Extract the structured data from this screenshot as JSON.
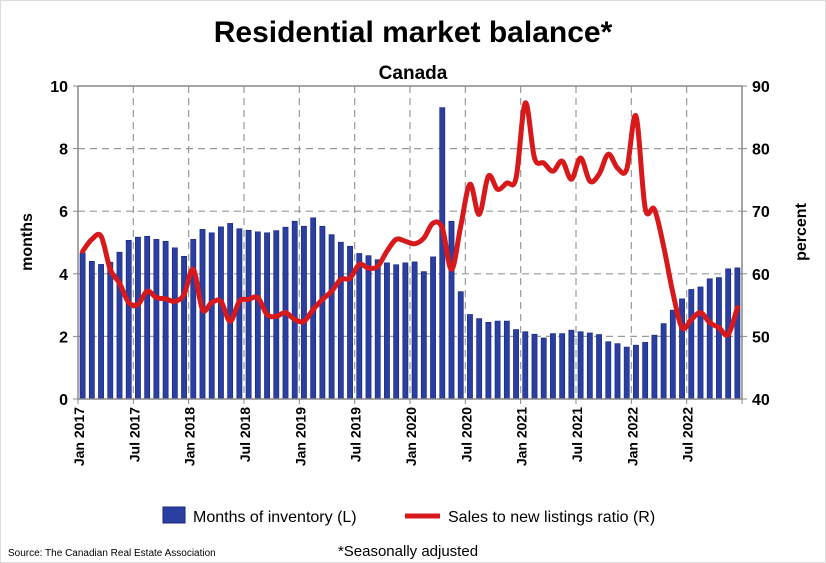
{
  "chart_data": {
    "type": "bar+line",
    "title": "Residential market balance*",
    "subtitle": "Canada",
    "ylabel_left": "months",
    "ylabel_right": "percent",
    "ylim_left": [
      0,
      10
    ],
    "ylim_right": [
      40,
      90
    ],
    "yticks_left": [
      "0",
      "2",
      "4",
      "6",
      "8",
      "10"
    ],
    "yticks_right": [
      "40",
      "50",
      "60",
      "70",
      "80",
      "90"
    ],
    "xticks": [
      "Jan 2017",
      "Jul 2017",
      "Jan 2018",
      "Jul 2018",
      "Jan 2019",
      "Jul 2019",
      "Jan 2020",
      "Jul 2020",
      "Jan 2021",
      "Jul 2021",
      "Jan 2022",
      "Jul 2022"
    ],
    "x_start": "Jan 2017",
    "x_end": "Dec 2022",
    "grid": true,
    "legend_position": "bottom",
    "series": [
      {
        "name": "Months of inventory (L)",
        "type": "bar",
        "axis": "left",
        "color": "#2b3fa0",
        "values": [
          4.67,
          4.4,
          4.3,
          4.37,
          4.69,
          5.07,
          5.17,
          5.2,
          5.1,
          5.04,
          4.83,
          4.56,
          5.1,
          5.42,
          5.31,
          5.5,
          5.61,
          5.44,
          5.39,
          5.34,
          5.31,
          5.38,
          5.49,
          5.68,
          5.52,
          5.79,
          5.52,
          5.25,
          5.01,
          4.88,
          4.65,
          4.58,
          4.45,
          4.35,
          4.29,
          4.35,
          4.38,
          4.07,
          4.54,
          9.31,
          5.68,
          3.43,
          2.7,
          2.57,
          2.45,
          2.49,
          2.49,
          2.22,
          2.15,
          2.07,
          1.95,
          2.09,
          2.09,
          2.2,
          2.15,
          2.11,
          2.06,
          1.83,
          1.77,
          1.66,
          1.72,
          1.81,
          2.04,
          2.41,
          2.84,
          3.2,
          3.5,
          3.58,
          3.84,
          3.88,
          4.16,
          4.19
        ]
      },
      {
        "name": "Sales to new listings ratio (R)",
        "type": "line",
        "axis": "right",
        "color": "#d7191c",
        "values": [
          63.6,
          65.5,
          66.0,
          60.7,
          58.5,
          55.4,
          55.1,
          57.2,
          56.2,
          56.0,
          55.6,
          56.7,
          60.7,
          54.3,
          55.4,
          55.6,
          52.4,
          55.6,
          55.9,
          56.2,
          53.5,
          53.2,
          53.8,
          52.7,
          52.4,
          54.3,
          55.9,
          57.2,
          59.1,
          59.3,
          61.5,
          60.9,
          61.2,
          63.6,
          65.5,
          65.2,
          64.8,
          65.7,
          68.1,
          67.3,
          60.7,
          67.6,
          74.3,
          69.5,
          75.6,
          73.5,
          74.5,
          75.3,
          87.3,
          78.5,
          77.7,
          76.4,
          78.0,
          75.1,
          78.5,
          74.8,
          75.9,
          79.1,
          76.9,
          76.7,
          85.2,
          70.5,
          70.3,
          64.4,
          57.0,
          51.4,
          52.7,
          53.8,
          52.2,
          51.4,
          50.3,
          54.6
        ]
      }
    ]
  },
  "footer": {
    "source": "Source: The Canadian Real Estate Association",
    "note": "*Seasonally adjusted"
  }
}
